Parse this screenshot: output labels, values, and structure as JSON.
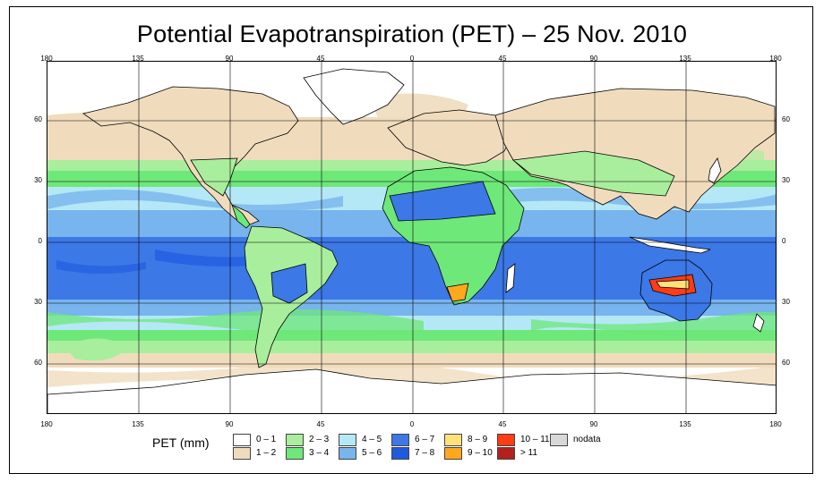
{
  "title": "Potential Evapotranspiration (PET) – 25 Nov. 2010",
  "axes": {
    "top_ticks": [
      "180",
      "135",
      "90",
      "45",
      "0",
      "45",
      "90",
      "135",
      "180"
    ],
    "bottom_ticks": [
      "180",
      "135",
      "90",
      "45",
      "0",
      "45",
      "90",
      "135",
      "180"
    ],
    "left_ticks": [
      "60",
      "30",
      "0",
      "30",
      "60"
    ],
    "right_ticks": [
      "60",
      "30",
      "0",
      "30",
      "60"
    ]
  },
  "legend": {
    "title": "PET (mm)",
    "items": [
      {
        "label": "0 – 1",
        "color": "#ffffff"
      },
      {
        "label": "1 – 2",
        "color": "#f0dcbd"
      },
      {
        "label": "2 – 3",
        "color": "#a8ee9c"
      },
      {
        "label": "3 – 4",
        "color": "#6ee878"
      },
      {
        "label": "4 – 5",
        "color": "#b4e8f6"
      },
      {
        "label": "5 – 6",
        "color": "#78b4ee"
      },
      {
        "label": "6 – 7",
        "color": "#3c78e6"
      },
      {
        "label": "7 – 8",
        "color": "#1e5ae0"
      },
      {
        "label": "8 – 9",
        "color": "#ffe27a"
      },
      {
        "label": "9 – 10",
        "color": "#ffa81e"
      },
      {
        "label": "10 – 11",
        "color": "#ff3c14"
      },
      {
        "label": "> 11",
        "color": "#b4201c"
      },
      {
        "label": "nodata",
        "color": "#d8d8d8"
      }
    ]
  }
}
